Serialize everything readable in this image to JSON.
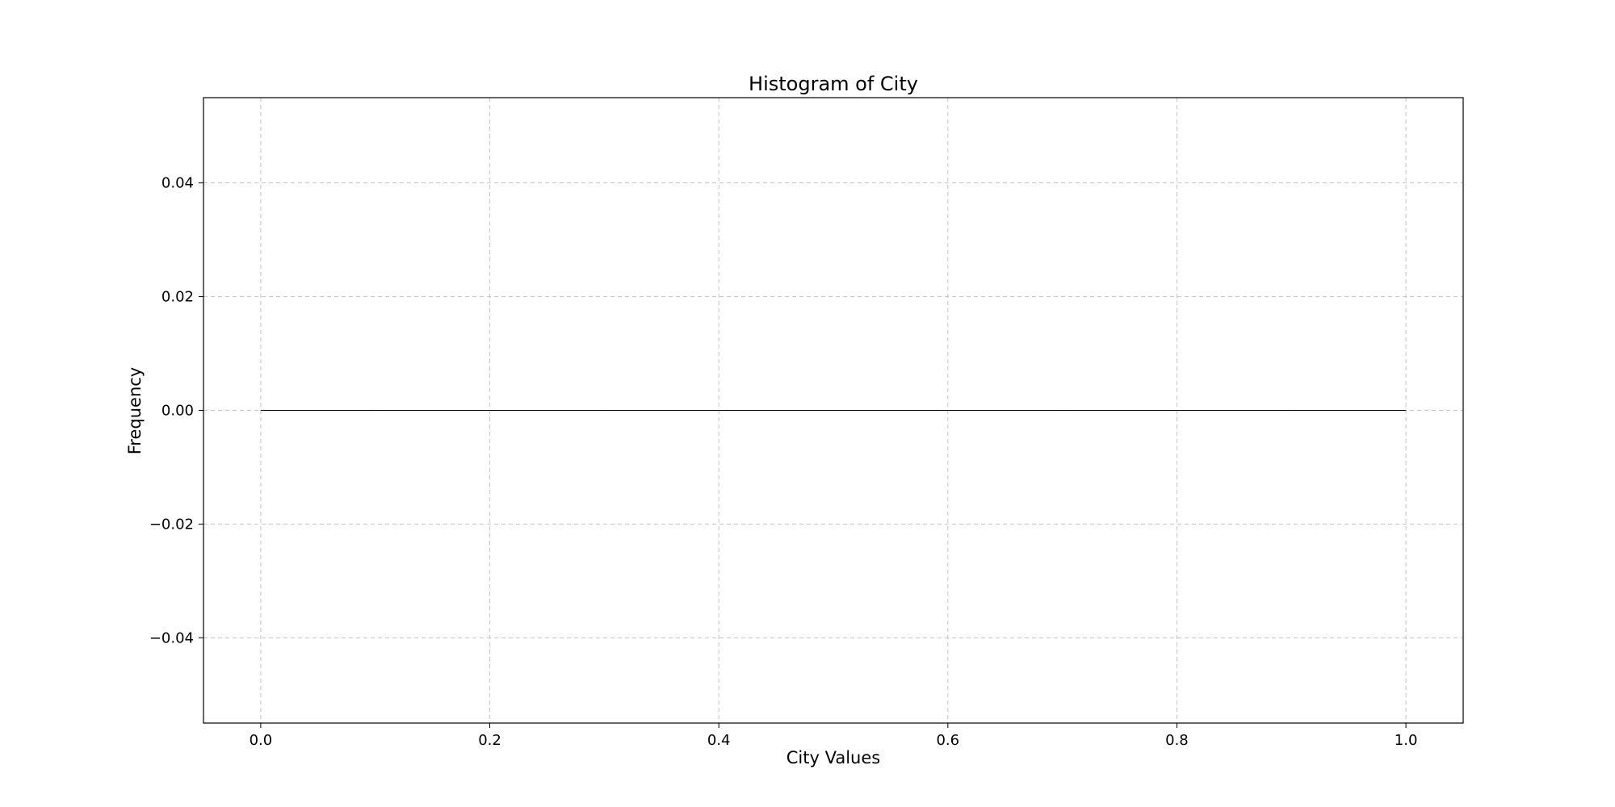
{
  "chart_data": {
    "type": "bar",
    "title": "Histogram of City",
    "xlabel": "City Values",
    "ylabel": "Frequency",
    "xlim": [
      -0.05,
      1.05
    ],
    "ylim": [
      -0.055,
      0.055
    ],
    "x_ticks": [
      0.0,
      0.2,
      0.4,
      0.6,
      0.8,
      1.0
    ],
    "x_tick_labels": [
      "0.0",
      "0.2",
      "0.4",
      "0.6",
      "0.8",
      "1.0"
    ],
    "y_ticks": [
      0.04,
      0.02,
      0.0,
      -0.02,
      -0.04
    ],
    "y_tick_labels": [
      "0.04",
      "0.02",
      "0.00",
      "−0.02",
      "−0.04"
    ],
    "grid": true,
    "bins": [
      {
        "x0": 0.0,
        "x1": 0.1,
        "count": 0
      },
      {
        "x0": 0.1,
        "x1": 0.2,
        "count": 0
      },
      {
        "x0": 0.2,
        "x1": 0.3,
        "count": 0
      },
      {
        "x0": 0.3,
        "x1": 0.4,
        "count": 0
      },
      {
        "x0": 0.4,
        "x1": 0.5,
        "count": 0
      },
      {
        "x0": 0.5,
        "x1": 0.6,
        "count": 0
      },
      {
        "x0": 0.6,
        "x1": 0.7,
        "count": 0
      },
      {
        "x0": 0.7,
        "x1": 0.8,
        "count": 0
      },
      {
        "x0": 0.8,
        "x1": 0.9,
        "count": 0
      },
      {
        "x0": 0.9,
        "x1": 1.0,
        "count": 0
      }
    ],
    "bar_color": "#1f77b4",
    "edge_color": "#000000"
  }
}
